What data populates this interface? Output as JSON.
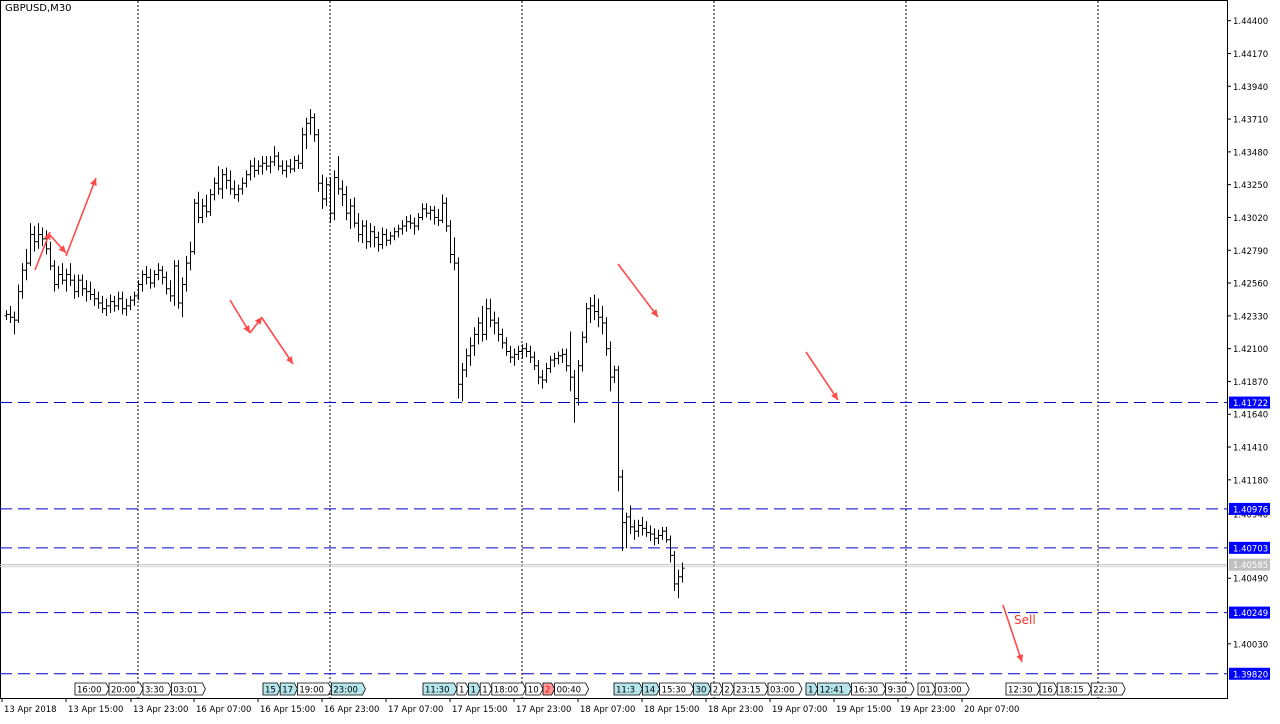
{
  "window": {
    "symbol_title": "GBPUSD,M30"
  },
  "colors": {
    "background": "#ffffff",
    "candles": "#000000",
    "level_lines": "#0000c8",
    "level_label_bg": "#0000ff",
    "level_label_text": "#ffffff",
    "current_price_bg": "#c0c0c0",
    "arrows": "#ff4a4a",
    "grid": "#000000",
    "event_tag_bg": "#ffffff",
    "event_tag_highlight": "#b4e6eb",
    "event_tag_red": "#ff0000",
    "sell_text": "#ff3030"
  },
  "price_axis": {
    "min": 1.3965,
    "max": 1.44545,
    "ticks": [
      "1.44400",
      "1.44170",
      "1.43940",
      "1.43710",
      "1.43480",
      "1.43250",
      "1.43020",
      "1.42790",
      "1.42560",
      "1.42330",
      "1.42100",
      "1.41870",
      "1.41640",
      "1.41410",
      "1.41180",
      "1.40940",
      "1.40490",
      "1.40030"
    ]
  },
  "time_axis": {
    "labels": [
      "13 Apr 2018",
      "13 Apr 15:00",
      "13 Apr 23:00",
      "16 Apr 07:00",
      "16 Apr 15:00",
      "16 Apr 23:00",
      "17 Apr 07:00",
      "17 Apr 15:00",
      "17 Apr 23:00",
      "18 Apr 07:00",
      "18 Apr 15:00",
      "18 Apr 23:00",
      "19 Apr 07:00",
      "19 Apr 15:00",
      "19 Apr 23:00",
      "20 Apr 07:00"
    ]
  },
  "levels": [
    {
      "price": 1.41722,
      "label": "1.41722"
    },
    {
      "price": 1.40976,
      "label": "1.40976"
    },
    {
      "price": 1.40703,
      "label": "1.40703"
    },
    {
      "price": 1.40249,
      "label": "1.40249"
    },
    {
      "price": 1.3982,
      "label": "1.39820"
    }
  ],
  "current_price": {
    "price": 1.40585,
    "label": "1.40585"
  },
  "annotations": {
    "sell_label": "Sell"
  },
  "event_tags": [
    {
      "text": "16:00",
      "hl": false
    },
    {
      "text": "20:00",
      "hl": false
    },
    {
      "text": "3:30",
      "hl": false
    },
    {
      "text": "03:01",
      "hl": false
    },
    {
      "text": "15",
      "hl": true
    },
    {
      "text": "17",
      "hl": true
    },
    {
      "text": "19:00",
      "hl": false
    },
    {
      "text": "23:00",
      "hl": true
    },
    {
      "text": "11:30",
      "hl": true
    },
    {
      "text": "1",
      "hl": false
    },
    {
      "text": "1",
      "hl": true
    },
    {
      "text": "1",
      "hl": false
    },
    {
      "text": "18:00",
      "hl": false
    },
    {
      "text": "10",
      "hl": false
    },
    {
      "text": "2",
      "hl": false,
      "red": true
    },
    {
      "text": "00:40",
      "hl": false
    },
    {
      "text": "11:3",
      "hl": true
    },
    {
      "text": "14",
      "hl": true
    },
    {
      "text": "15:30",
      "hl": false
    },
    {
      "text": "30",
      "hl": true
    },
    {
      "text": "2",
      "hl": false
    },
    {
      "text": "2",
      "hl": false
    },
    {
      "text": "23:15",
      "hl": false
    },
    {
      "text": "03:00",
      "hl": false
    },
    {
      "text": "1",
      "hl": true
    },
    {
      "text": "12:41",
      "hl": true
    },
    {
      "text": "16:30",
      "hl": false
    },
    {
      "text": "9:30",
      "hl": false
    },
    {
      "text": "01",
      "hl": false
    },
    {
      "text": "03:00",
      "hl": false
    },
    {
      "text": "12:30",
      "hl": false
    },
    {
      "text": "16",
      "hl": false
    },
    {
      "text": "18:15",
      "hl": false
    },
    {
      "text": "22:30",
      "hl": false
    }
  ],
  "chart_data": {
    "type": "ohlc",
    "symbol": "GBPUSD",
    "timeframe": "M30",
    "candles": [
      [
        1.4233,
        1.4237,
        1.423,
        1.4234
      ],
      [
        1.4234,
        1.424,
        1.4228,
        1.4232
      ],
      [
        1.4232,
        1.4236,
        1.422,
        1.423
      ],
      [
        1.423,
        1.4255,
        1.4228,
        1.425
      ],
      [
        1.425,
        1.427,
        1.4245,
        1.4265
      ],
      [
        1.4265,
        1.428,
        1.4258,
        1.427
      ],
      [
        1.427,
        1.4298,
        1.4268,
        1.429
      ],
      [
        1.429,
        1.4296,
        1.4278,
        1.4285
      ],
      [
        1.4285,
        1.4298,
        1.428,
        1.429
      ],
      [
        1.429,
        1.4295,
        1.4282,
        1.4287
      ],
      [
        1.4287,
        1.4293,
        1.4276,
        1.428
      ],
      [
        1.428,
        1.4285,
        1.4265,
        1.4268
      ],
      [
        1.4268,
        1.4272,
        1.425,
        1.4255
      ],
      [
        1.4255,
        1.4268,
        1.4252,
        1.4262
      ],
      [
        1.4262,
        1.427,
        1.4255,
        1.4258
      ],
      [
        1.4258,
        1.4266,
        1.425,
        1.4262
      ],
      [
        1.4262,
        1.427,
        1.4254,
        1.4258
      ],
      [
        1.4258,
        1.4262,
        1.4245,
        1.425
      ],
      [
        1.425,
        1.4262,
        1.4246,
        1.4258
      ],
      [
        1.4258,
        1.4262,
        1.4247,
        1.4252
      ],
      [
        1.4252,
        1.4258,
        1.4243,
        1.425
      ],
      [
        1.425,
        1.4257,
        1.4244,
        1.4248
      ],
      [
        1.4248,
        1.4252,
        1.424,
        1.4245
      ],
      [
        1.4245,
        1.425,
        1.4238,
        1.4242
      ],
      [
        1.4242,
        1.4247,
        1.4235,
        1.4238
      ],
      [
        1.4238,
        1.4245,
        1.4233,
        1.424
      ],
      [
        1.424,
        1.4248,
        1.4235,
        1.4243
      ],
      [
        1.4243,
        1.4247,
        1.4236,
        1.424
      ],
      [
        1.424,
        1.425,
        1.4237,
        1.4245
      ],
      [
        1.4245,
        1.425,
        1.4234,
        1.4238
      ],
      [
        1.4238,
        1.4245,
        1.4233,
        1.424
      ],
      [
        1.424,
        1.4247,
        1.4237,
        1.4244
      ],
      [
        1.4244,
        1.425,
        1.424,
        1.4247
      ],
      [
        1.4247,
        1.4258,
        1.4244,
        1.4255
      ],
      [
        1.4255,
        1.4265,
        1.425,
        1.4262
      ],
      [
        1.4262,
        1.4268,
        1.4255,
        1.426
      ],
      [
        1.426,
        1.4266,
        1.4252,
        1.4256
      ],
      [
        1.4256,
        1.4265,
        1.4253,
        1.4262
      ],
      [
        1.4262,
        1.427,
        1.4258,
        1.4265
      ],
      [
        1.4265,
        1.4268,
        1.4255,
        1.426
      ],
      [
        1.426,
        1.4264,
        1.4248,
        1.4252
      ],
      [
        1.4252,
        1.4258,
        1.4243,
        1.4247
      ],
      [
        1.4247,
        1.4272,
        1.424,
        1.4268
      ],
      [
        1.4268,
        1.4272,
        1.4238,
        1.4242
      ],
      [
        1.4242,
        1.426,
        1.4232,
        1.4255
      ],
      [
        1.4255,
        1.4275,
        1.425,
        1.427
      ],
      [
        1.427,
        1.4285,
        1.4265,
        1.4278
      ],
      [
        1.4278,
        1.4315,
        1.4276,
        1.4312
      ],
      [
        1.4312,
        1.432,
        1.4298,
        1.4302
      ],
      [
        1.4302,
        1.4315,
        1.4298,
        1.431
      ],
      [
        1.431,
        1.4318,
        1.4302,
        1.4306
      ],
      [
        1.4306,
        1.4322,
        1.4303,
        1.4318
      ],
      [
        1.4318,
        1.433,
        1.4314,
        1.4326
      ],
      [
        1.4326,
        1.4338,
        1.4318,
        1.4322
      ],
      [
        1.4322,
        1.4336,
        1.4315,
        1.4332
      ],
      [
        1.4332,
        1.4337,
        1.4322,
        1.4328
      ],
      [
        1.4328,
        1.4335,
        1.4318,
        1.4322
      ],
      [
        1.4322,
        1.4328,
        1.4315,
        1.4318
      ],
      [
        1.4318,
        1.4325,
        1.4313,
        1.4322
      ],
      [
        1.4322,
        1.433,
        1.4318,
        1.4326
      ],
      [
        1.4326,
        1.4335,
        1.4323,
        1.4332
      ],
      [
        1.4332,
        1.4342,
        1.4328,
        1.4338
      ],
      [
        1.4338,
        1.4344,
        1.433,
        1.4335
      ],
      [
        1.4335,
        1.4342,
        1.4332,
        1.4338
      ],
      [
        1.4338,
        1.4345,
        1.4332,
        1.434
      ],
      [
        1.434,
        1.4345,
        1.4335,
        1.4338
      ],
      [
        1.4338,
        1.4345,
        1.4333,
        1.4341
      ],
      [
        1.4341,
        1.4352,
        1.4338,
        1.4345
      ],
      [
        1.4345,
        1.4348,
        1.4335,
        1.4338
      ],
      [
        1.4338,
        1.4342,
        1.4332,
        1.4335
      ],
      [
        1.4335,
        1.4342,
        1.433,
        1.4338
      ],
      [
        1.4338,
        1.4343,
        1.4333,
        1.4336
      ],
      [
        1.4336,
        1.4345,
        1.4334,
        1.4342
      ],
      [
        1.4342,
        1.4346,
        1.4336,
        1.434
      ],
      [
        1.434,
        1.4365,
        1.4336,
        1.436
      ],
      [
        1.436,
        1.4372,
        1.435,
        1.4368
      ],
      [
        1.4368,
        1.4378,
        1.436,
        1.4372
      ],
      [
        1.4372,
        1.4375,
        1.4355,
        1.436
      ],
      [
        1.436,
        1.4364,
        1.432,
        1.4326
      ],
      [
        1.4326,
        1.4332,
        1.4308,
        1.4315
      ],
      [
        1.4315,
        1.433,
        1.431,
        1.4325
      ],
      [
        1.4325,
        1.433,
        1.4298,
        1.4305
      ],
      [
        1.4305,
        1.4335,
        1.43,
        1.433
      ],
      [
        1.433,
        1.4345,
        1.4318,
        1.4322
      ],
      [
        1.4322,
        1.4328,
        1.431,
        1.4318
      ],
      [
        1.4318,
        1.4324,
        1.43,
        1.4305
      ],
      [
        1.4305,
        1.4315,
        1.4294,
        1.431
      ],
      [
        1.431,
        1.4316,
        1.4295,
        1.4298
      ],
      [
        1.4298,
        1.4305,
        1.4285,
        1.429
      ],
      [
        1.429,
        1.43,
        1.4284,
        1.4296
      ],
      [
        1.4296,
        1.43,
        1.428,
        1.4285
      ],
      [
        1.4285,
        1.4298,
        1.4281,
        1.4292
      ],
      [
        1.4292,
        1.4296,
        1.4281,
        1.4288
      ],
      [
        1.4288,
        1.4292,
        1.4278,
        1.4283
      ],
      [
        1.4283,
        1.4295,
        1.428,
        1.429
      ],
      [
        1.429,
        1.4294,
        1.4282,
        1.4286
      ],
      [
        1.4286,
        1.4292,
        1.4283,
        1.4289
      ],
      [
        1.4289,
        1.4295,
        1.4286,
        1.4292
      ],
      [
        1.4292,
        1.4297,
        1.4288,
        1.4294
      ],
      [
        1.4294,
        1.43,
        1.429,
        1.4296
      ],
      [
        1.4296,
        1.4303,
        1.4292,
        1.4299
      ],
      [
        1.4299,
        1.4304,
        1.4294,
        1.4298
      ],
      [
        1.4298,
        1.4302,
        1.429,
        1.4296
      ],
      [
        1.4296,
        1.4305,
        1.4293,
        1.4302
      ],
      [
        1.4302,
        1.4312,
        1.43,
        1.4308
      ],
      [
        1.4308,
        1.4312,
        1.4302,
        1.4305
      ],
      [
        1.4305,
        1.431,
        1.43,
        1.4307
      ],
      [
        1.4307,
        1.431,
        1.4297,
        1.4302
      ],
      [
        1.4302,
        1.4308,
        1.4296,
        1.43
      ],
      [
        1.43,
        1.4318,
        1.4298,
        1.4312
      ],
      [
        1.4312,
        1.4316,
        1.4292,
        1.4296
      ],
      [
        1.4296,
        1.43,
        1.427,
        1.4276
      ],
      [
        1.4276,
        1.4288,
        1.4265,
        1.427
      ],
      [
        1.427,
        1.4274,
        1.4175,
        1.4185
      ],
      [
        1.4185,
        1.42,
        1.4173,
        1.4195
      ],
      [
        1.4195,
        1.421,
        1.419,
        1.4205
      ],
      [
        1.4205,
        1.4218,
        1.4198,
        1.4212
      ],
      [
        1.4212,
        1.4225,
        1.4205,
        1.422
      ],
      [
        1.422,
        1.4232,
        1.4213,
        1.4228
      ],
      [
        1.4228,
        1.424,
        1.4215,
        1.422
      ],
      [
        1.422,
        1.4245,
        1.4216,
        1.4238
      ],
      [
        1.4238,
        1.4245,
        1.4225,
        1.423
      ],
      [
        1.423,
        1.4236,
        1.422,
        1.4228
      ],
      [
        1.4228,
        1.4232,
        1.4215,
        1.422
      ],
      [
        1.422,
        1.4224,
        1.421,
        1.4214
      ],
      [
        1.4214,
        1.4218,
        1.4205,
        1.4208
      ],
      [
        1.4208,
        1.4212,
        1.42,
        1.4204
      ],
      [
        1.4204,
        1.421,
        1.4198,
        1.4206
      ],
      [
        1.4206,
        1.4212,
        1.4202,
        1.4208
      ],
      [
        1.4208,
        1.4213,
        1.4203,
        1.421
      ],
      [
        1.421,
        1.4214,
        1.4204,
        1.4208
      ],
      [
        1.4208,
        1.4212,
        1.42,
        1.4204
      ],
      [
        1.4204,
        1.4208,
        1.4195,
        1.4198
      ],
      [
        1.4198,
        1.4202,
        1.4185,
        1.419
      ],
      [
        1.419,
        1.4195,
        1.4182,
        1.4188
      ],
      [
        1.4188,
        1.42,
        1.4186,
        1.4196
      ],
      [
        1.4196,
        1.4205,
        1.4193,
        1.4202
      ],
      [
        1.4202,
        1.4207,
        1.4197,
        1.4203
      ],
      [
        1.4203,
        1.4208,
        1.4199,
        1.4205
      ],
      [
        1.4205,
        1.421,
        1.42,
        1.4206
      ],
      [
        1.4206,
        1.421,
        1.4194,
        1.4198
      ],
      [
        1.4198,
        1.4222,
        1.418,
        1.419
      ],
      [
        1.419,
        1.4195,
        1.4158,
        1.4175
      ],
      [
        1.4175,
        1.4202,
        1.417,
        1.4198
      ],
      [
        1.4198,
        1.4222,
        1.4194,
        1.4218
      ],
      [
        1.4218,
        1.4242,
        1.4214,
        1.4238
      ],
      [
        1.4238,
        1.4246,
        1.4228,
        1.424
      ],
      [
        1.424,
        1.4248,
        1.423,
        1.4236
      ],
      [
        1.4236,
        1.4245,
        1.4225,
        1.4232
      ],
      [
        1.4232,
        1.424,
        1.422,
        1.4228
      ],
      [
        1.4228,
        1.4232,
        1.4205,
        1.421
      ],
      [
        1.421,
        1.4215,
        1.418,
        1.419
      ],
      [
        1.419,
        1.4198,
        1.4186,
        1.4195
      ],
      [
        1.4195,
        1.4198,
        1.411,
        1.412
      ],
      [
        1.412,
        1.4125,
        1.4068,
        1.4088
      ],
      [
        1.4088,
        1.4095,
        1.407,
        1.4092
      ],
      [
        1.4092,
        1.41,
        1.408,
        1.4085
      ],
      [
        1.4085,
        1.409,
        1.4076,
        1.4082
      ],
      [
        1.4082,
        1.409,
        1.4078,
        1.4086
      ],
      [
        1.4086,
        1.4092,
        1.4079,
        1.4084
      ],
      [
        1.4084,
        1.4089,
        1.4078,
        1.4081
      ],
      [
        1.4081,
        1.4086,
        1.4075,
        1.408
      ],
      [
        1.408,
        1.4084,
        1.4072,
        1.4077
      ],
      [
        1.4077,
        1.4083,
        1.4073,
        1.4079
      ],
      [
        1.4079,
        1.4085,
        1.4076,
        1.4082
      ],
      [
        1.4082,
        1.4085,
        1.4074,
        1.4076
      ],
      [
        1.4076,
        1.4079,
        1.406,
        1.4065
      ],
      [
        1.4065,
        1.4068,
        1.404,
        1.4045
      ],
      [
        1.4045,
        1.4055,
        1.4035,
        1.405
      ],
      [
        1.405,
        1.406,
        1.4046,
        1.4056
      ]
    ],
    "levels": [
      1.41722,
      1.40976,
      1.40703,
      1.40249,
      1.3982
    ],
    "current_price": 1.40585,
    "ylim": [
      1.3965,
      1.44545
    ]
  }
}
